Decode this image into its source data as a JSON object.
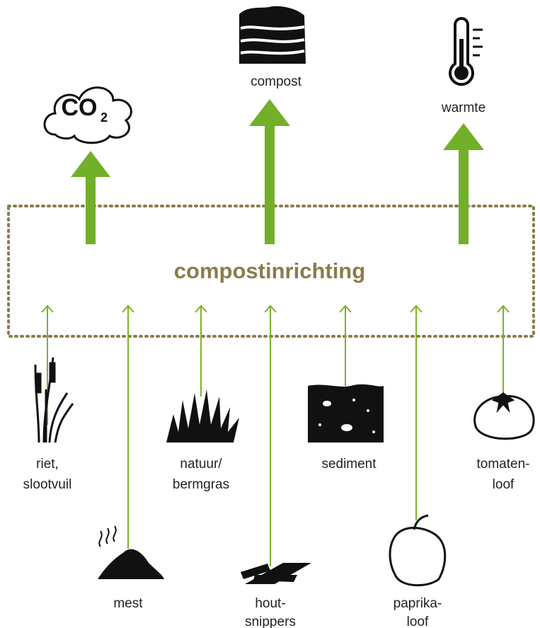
{
  "diagram": {
    "title": "compostinrichting",
    "outputs": [
      {
        "label": "CO",
        "subscript": "2"
      },
      {
        "label": "compost"
      },
      {
        "label": "warmte"
      }
    ],
    "inputs": [
      {
        "label": [
          "riet,",
          "slootvuil"
        ]
      },
      {
        "label": [
          "mest"
        ]
      },
      {
        "label": [
          "natuur/",
          "bermgras"
        ]
      },
      {
        "label": [
          "hout-",
          "snippers"
        ]
      },
      {
        "label": [
          "sediment"
        ]
      },
      {
        "label": [
          "paprika-",
          "loof"
        ]
      },
      {
        "label": [
          "tomaten-",
          "loof"
        ]
      }
    ]
  }
}
